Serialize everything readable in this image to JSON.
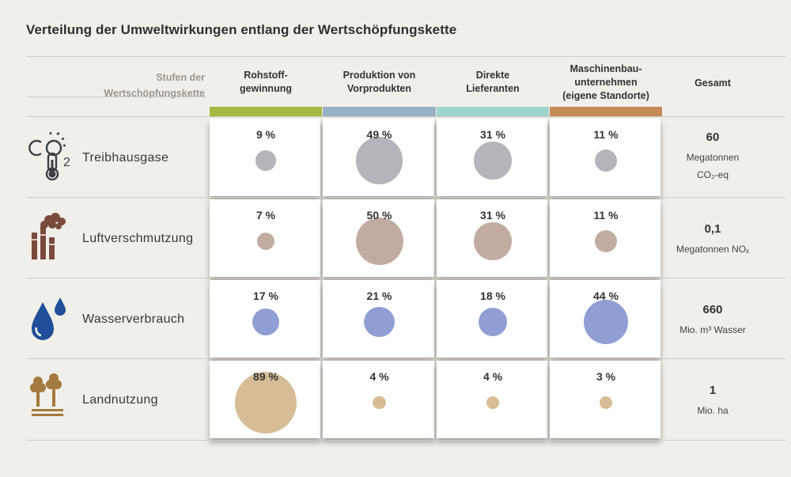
{
  "title": "Verteilung der Umweltwirkungen entlang der Wertschöpfungskette",
  "stage_label_1": "Stufen der",
  "stage_label_2": "Wertschöpfungskette",
  "columns": [
    {
      "l1": "Rohstoff-",
      "l2": "gewinnung",
      "l3": "",
      "color": "#a7b840"
    },
    {
      "l1": "Produktion von",
      "l2": "Vorprodukten",
      "l3": "",
      "color": "#98b1c4"
    },
    {
      "l1": "Direkte",
      "l2": "Lieferanten",
      "l3": "",
      "color": "#9fd3cd"
    },
    {
      "l1": "Maschinenbau-",
      "l2": "unternehmen",
      "l3": "(eigene Standorte)",
      "color": "#c48a55"
    }
  ],
  "total_header": "Gesamt",
  "rows": [
    {
      "name": "Treibhausgase",
      "icon": "co2-thermometer-icon",
      "pct_labels": [
        "9 %",
        "49 %",
        "31 %",
        "11 %"
      ],
      "total_value": "60",
      "total_unit_1": "Megatonnen",
      "total_unit_2": "CO₂-eq",
      "bubble_color": "#b7b3ba"
    },
    {
      "name": "Luftverschmutzung",
      "icon": "factory-smoke-icon",
      "pct_labels": [
        "7 %",
        "50 %",
        "31 %",
        "11 %"
      ],
      "total_value": "0,1",
      "total_unit_1": "Megatonnen NOₓ",
      "total_unit_2": "",
      "bubble_color": "#c2aca2"
    },
    {
      "name": "Wasserverbrauch",
      "icon": "water-drops-icon",
      "pct_labels": [
        "17 %",
        "21 %",
        "18 %",
        "44 %"
      ],
      "total_value": "660",
      "total_unit_1": "Mio. m³ Wasser",
      "total_unit_2": "",
      "bubble_color": "#8f9fd4"
    },
    {
      "name": "Landnutzung",
      "icon": "trees-land-icon",
      "pct_labels": [
        "89 %",
        "4 %",
        "4 %",
        "3 %"
      ],
      "total_value": "1",
      "total_unit_1": "Mio. ha",
      "total_unit_2": "",
      "bubble_color": "#d6bd95"
    }
  ],
  "chart_data": {
    "type": "bubble-matrix",
    "title": "Verteilung der Umweltwirkungen entlang der Wertschöpfungskette",
    "categories": [
      "Rohstoffgewinnung",
      "Produktion von Vorprodukten",
      "Direkte Lieferanten",
      "Maschinenbauunternehmen (eigene Standorte)"
    ],
    "series": [
      {
        "name": "Treibhausgase",
        "values": [
          9,
          49,
          31,
          11
        ],
        "total": "60 Megatonnen CO₂-eq"
      },
      {
        "name": "Luftverschmutzung",
        "values": [
          7,
          50,
          31,
          11
        ],
        "total": "0,1 Megatonnen NOₓ"
      },
      {
        "name": "Wasserverbrauch",
        "values": [
          17,
          21,
          18,
          44
        ],
        "total": "660 Mio. m³ Wasser"
      },
      {
        "name": "Landnutzung",
        "values": [
          89,
          4,
          4,
          3
        ],
        "total": "1 Mio. ha"
      }
    ],
    "unit": "%"
  }
}
